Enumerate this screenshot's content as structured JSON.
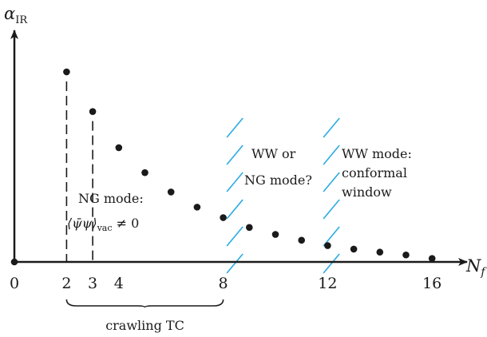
{
  "chart_data": {
    "type": "scatter",
    "ylabel": "α",
    "ylabel_sub": "IR",
    "xlabel": "N",
    "xlabel_sub": "f",
    "xticks": [
      0,
      2,
      3,
      4,
      8,
      12,
      16
    ],
    "xlim": [
      0,
      17.5
    ],
    "ylim": [
      0,
      10
    ],
    "points": [
      {
        "x": 0,
        "y": 0
      },
      {
        "x": 2,
        "y": 8.15
      },
      {
        "x": 3,
        "y": 6.45
      },
      {
        "x": 4,
        "y": 4.9
      },
      {
        "x": 5,
        "y": 3.83
      },
      {
        "x": 6,
        "y": 3.0
      },
      {
        "x": 7,
        "y": 2.35
      },
      {
        "x": 8,
        "y": 1.9
      },
      {
        "x": 9,
        "y": 1.48
      },
      {
        "x": 10,
        "y": 1.18
      },
      {
        "x": 11,
        "y": 0.93
      },
      {
        "x": 12,
        "y": 0.7
      },
      {
        "x": 13,
        "y": 0.55
      },
      {
        "x": 14,
        "y": 0.42
      },
      {
        "x": 15,
        "y": 0.3
      },
      {
        "x": 16,
        "y": 0.15
      }
    ],
    "dashed_lines_x": [
      2,
      3
    ],
    "hatch_bands_x": [
      8.2,
      11.9
    ],
    "hatch_color": "#29abe2",
    "marker_color": "#1a1a1a",
    "brace": {
      "from": 2,
      "to": 8,
      "label": "crawling TC"
    },
    "annotations": {
      "ng_line1": "NG mode:",
      "ng_math": "⟨ψ̄ψ⟩",
      "ng_math_sub": "vac",
      "ng_math_rel": " ≠ 0",
      "ww_or_line1": "WW or",
      "ww_or_line2": "NG mode?",
      "ww_line1": "WW mode:",
      "ww_line2": "conformal",
      "ww_line3": "window"
    }
  }
}
